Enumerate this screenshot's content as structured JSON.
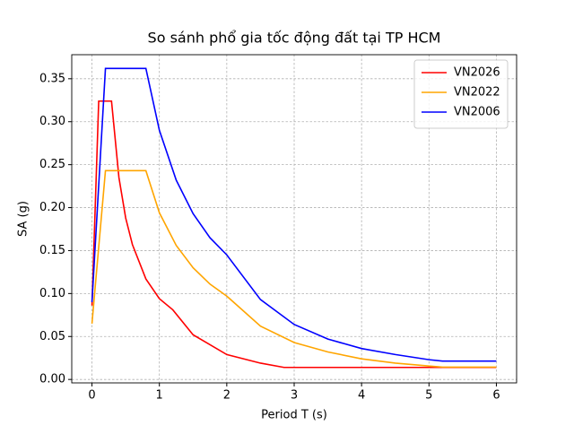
{
  "chart_data": {
    "type": "line",
    "title": "So sánh phổ gia tốc động đất tại TP HCM",
    "xlabel": "Period T (s)",
    "ylabel": "SA (g)",
    "xlim": [
      -0.3,
      6.3
    ],
    "ylim": [
      -0.004,
      0.378
    ],
    "xticks": [
      0,
      1,
      2,
      3,
      4,
      5,
      6
    ],
    "yticks": [
      {
        "value": 0,
        "label": "0.00"
      },
      {
        "value": 0.05,
        "label": "0.05"
      },
      {
        "value": 0.1,
        "label": "0.10"
      },
      {
        "value": 0.15,
        "label": "0.15"
      },
      {
        "value": 0.2,
        "label": "0.20"
      },
      {
        "value": 0.25,
        "label": "0.25"
      },
      {
        "value": 0.3,
        "label": "0.30"
      },
      {
        "value": 0.35,
        "label": "0.35"
      }
    ],
    "grid": true,
    "legend": "upper right",
    "series": [
      {
        "name": "VN2026",
        "color": "#ff0000",
        "x": [
          0,
          0.1,
          0.29,
          0.4,
          0.5,
          0.6,
          0.8,
          1.0,
          1.2,
          1.5,
          2.0,
          2.5,
          2.85,
          4,
          5,
          6
        ],
        "values": [
          0.086,
          0.324,
          0.324,
          0.235,
          0.188,
          0.157,
          0.117,
          0.094,
          0.081,
          0.052,
          0.029,
          0.019,
          0.014,
          0.014,
          0.014,
          0.014
        ]
      },
      {
        "name": "VN2022",
        "color": "#ffa500",
        "x": [
          0,
          0.2,
          0.8,
          1.0,
          1.25,
          1.5,
          1.75,
          2.0,
          2.5,
          3,
          3.5,
          4,
          4.5,
          5,
          5.2,
          6
        ],
        "values": [
          0.065,
          0.243,
          0.243,
          0.194,
          0.156,
          0.13,
          0.111,
          0.097,
          0.062,
          0.043,
          0.032,
          0.024,
          0.019,
          0.0156,
          0.0144,
          0.0144
        ]
      },
      {
        "name": "VN2006",
        "color": "#0000ff",
        "x": [
          0,
          0.2,
          0.8,
          1.0,
          1.25,
          1.5,
          1.75,
          2.0,
          2.5,
          3,
          3.5,
          4,
          4.5,
          5,
          5.2,
          6
        ],
        "values": [
          0.09,
          0.362,
          0.362,
          0.29,
          0.232,
          0.193,
          0.165,
          0.145,
          0.093,
          0.064,
          0.047,
          0.036,
          0.029,
          0.023,
          0.0214,
          0.0214
        ]
      }
    ]
  }
}
